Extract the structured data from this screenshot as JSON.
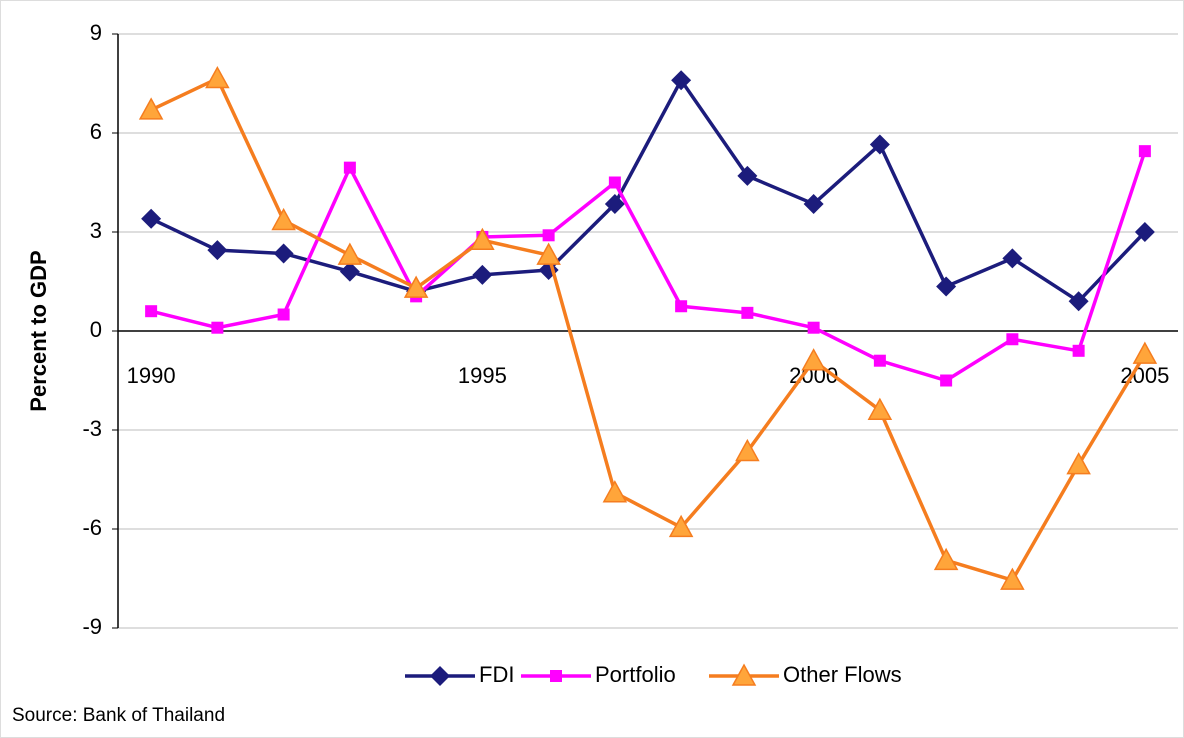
{
  "chart_data": {
    "type": "line",
    "y_label": "Percent to GDP",
    "source": "Source: Bank of Thailand",
    "x": [
      1990,
      1991,
      1992,
      1993,
      1994,
      1995,
      1996,
      1997,
      1998,
      1999,
      2000,
      2001,
      2002,
      2003,
      2004,
      2005
    ],
    "xlim": [
      1989.5,
      2005.5
    ],
    "xticks": [
      1990,
      1995,
      2000,
      2005
    ],
    "ylim": [
      -9,
      9
    ],
    "yticks": [
      -9,
      -6,
      -3,
      0,
      3,
      6,
      9
    ],
    "grid": true,
    "legend": "bottom",
    "series": [
      {
        "name": "FDI",
        "color": "#1c1c7c",
        "marker": "diamond",
        "values": [
          3.4,
          2.45,
          2.35,
          1.8,
          1.2,
          1.7,
          1.85,
          3.85,
          7.6,
          4.7,
          3.85,
          5.65,
          1.35,
          2.2,
          0.9,
          3.0
        ]
      },
      {
        "name": "Portfolio",
        "color": "#ff00ff",
        "marker": "square",
        "values": [
          0.6,
          0.1,
          0.5,
          4.95,
          1.05,
          2.85,
          2.9,
          4.5,
          0.75,
          0.55,
          0.1,
          -0.9,
          -1.5,
          -0.25,
          -0.6,
          5.45
        ]
      },
      {
        "name": "Other Flows",
        "color": "#f57d1f",
        "marker": "triangle",
        "values": [
          6.7,
          7.65,
          3.35,
          2.3,
          1.3,
          2.75,
          2.3,
          -4.9,
          -5.95,
          -3.65,
          -0.9,
          -2.4,
          -6.95,
          -7.55,
          -4.05,
          -0.7
        ]
      }
    ]
  }
}
